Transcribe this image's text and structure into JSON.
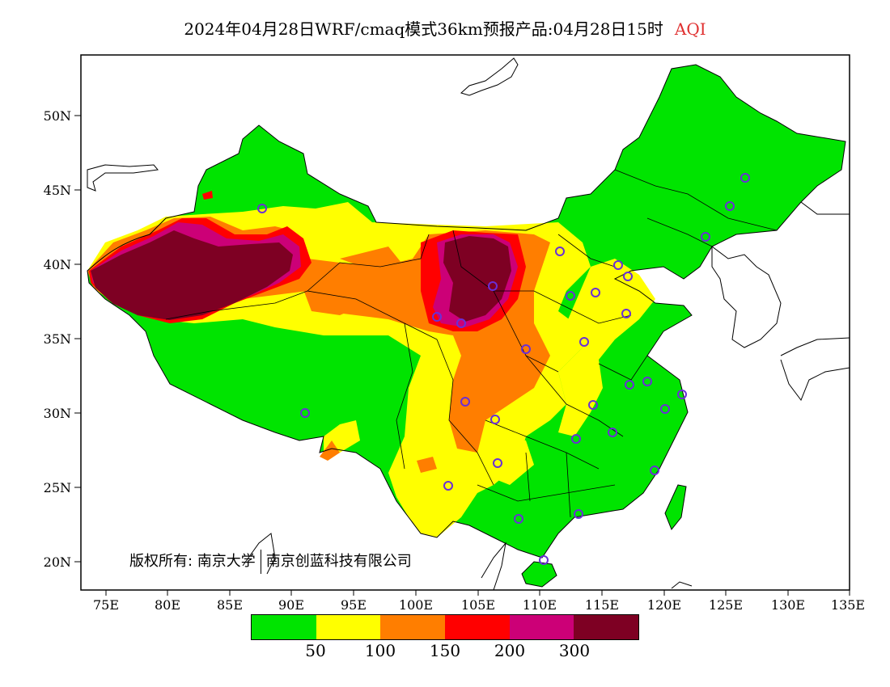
{
  "header": {
    "title": "2024年04月28日WRF/cmaq模式36km预报产品:04月28日15时",
    "product": "AQI"
  },
  "axes": {
    "lat_labels": [
      "20N",
      "25N",
      "30N",
      "35N",
      "40N",
      "45N",
      "50N"
    ],
    "lon_labels": [
      "75E",
      "80E",
      "85E",
      "90E",
      "95E",
      "100E",
      "105E",
      "110E",
      "115E",
      "120E",
      "125E",
      "130E",
      "135E"
    ]
  },
  "legend": {
    "bins": [
      {
        "color": "#00e400",
        "label": "50"
      },
      {
        "color": "#ffff00",
        "label": "100"
      },
      {
        "color": "#ff7e00",
        "label": "150"
      },
      {
        "color": "#ff0000",
        "label": "200"
      },
      {
        "color": "#cc0077",
        "label": "300"
      },
      {
        "color": "#7e0023",
        "label": ""
      }
    ]
  },
  "copyright": {
    "left": "版权所有: 南京大学",
    "right": "南京创蓝科技有限公司"
  },
  "colors": {
    "accent_title": "#e03030",
    "marker": "#6a2fd6"
  }
}
